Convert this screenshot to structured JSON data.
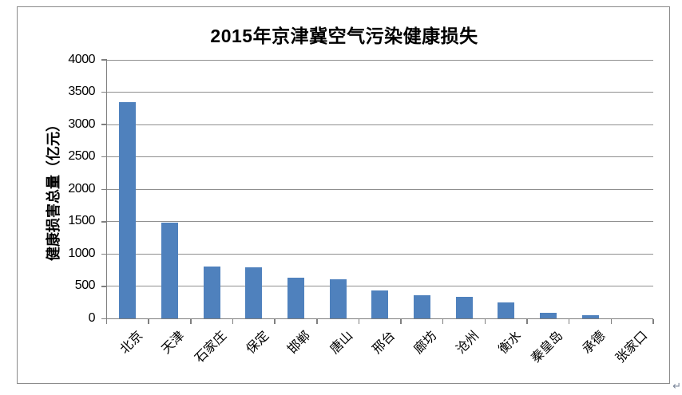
{
  "chart_data": {
    "type": "bar",
    "title": "2015年京津冀空气污染健康损失",
    "ylabel": "健康损害总量（亿元）",
    "xlabel": "",
    "categories": [
      "北京",
      "天津",
      "石家庄",
      "保定",
      "邯郸",
      "唐山",
      "邢台",
      "廊坊",
      "沧州",
      "衡水",
      "秦皇岛",
      "承德",
      "张家口"
    ],
    "values": [
      3350,
      1490,
      810,
      800,
      640,
      605,
      440,
      365,
      345,
      250,
      90,
      50,
      0
    ],
    "ylim": [
      0,
      4000
    ],
    "yticks": [
      0,
      500,
      1000,
      1500,
      2000,
      2500,
      3000,
      3500,
      4000
    ],
    "grid": "horizontal",
    "legend": "none",
    "colors": {
      "bar": "#4F81BD",
      "gridline": "#8f8f8f",
      "axis": "#7f7f7f",
      "text": "#000000"
    }
  },
  "page": {
    "paragraph_mark": "↵"
  }
}
